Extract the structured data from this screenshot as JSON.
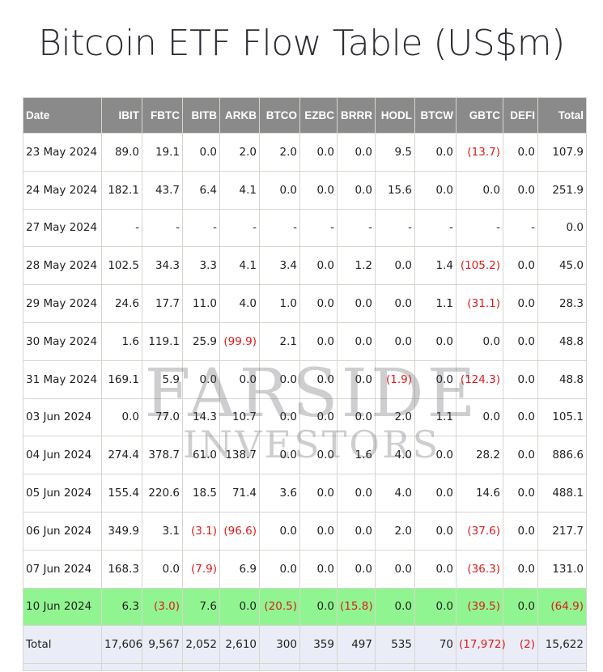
{
  "title": "Bitcoin ETF Flow Table (US$m)",
  "watermark": {
    "line1": "FARSIDE",
    "line2": "INVESTORS"
  },
  "table": {
    "columns": [
      "Date",
      "IBIT",
      "FBTC",
      "BITB",
      "ARKB",
      "BTCO",
      "EZBC",
      "BRRR",
      "HODL",
      "BTCW",
      "GBTC",
      "DEFI",
      "Total"
    ],
    "rows": [
      {
        "cells": [
          "23 May 2024",
          "89.0",
          "19.1",
          "0.0",
          "2.0",
          "2.0",
          "0.0",
          "0.0",
          "9.5",
          "0.0",
          "(13.7)",
          "0.0",
          "107.9"
        ]
      },
      {
        "cells": [
          "24 May 2024",
          "182.1",
          "43.7",
          "6.4",
          "4.1",
          "0.0",
          "0.0",
          "0.0",
          "15.6",
          "0.0",
          "0.0",
          "0.0",
          "251.9"
        ]
      },
      {
        "cells": [
          "27 May 2024",
          "-",
          "-",
          "-",
          "-",
          "-",
          "-",
          "-",
          "-",
          "-",
          "-",
          "-",
          "0.0"
        ]
      },
      {
        "cells": [
          "28 May 2024",
          "102.5",
          "34.3",
          "3.3",
          "4.1",
          "3.4",
          "0.0",
          "1.2",
          "0.0",
          "1.4",
          "(105.2)",
          "0.0",
          "45.0"
        ]
      },
      {
        "cells": [
          "29 May 2024",
          "24.6",
          "17.7",
          "11.0",
          "4.0",
          "1.0",
          "0.0",
          "0.0",
          "0.0",
          "1.1",
          "(31.1)",
          "0.0",
          "28.3"
        ]
      },
      {
        "cells": [
          "30 May 2024",
          "1.6",
          "119.1",
          "25.9",
          "(99.9)",
          "2.1",
          "0.0",
          "0.0",
          "0.0",
          "0.0",
          "0.0",
          "0.0",
          "48.8"
        ]
      },
      {
        "cells": [
          "31 May 2024",
          "169.1",
          "5.9",
          "0.0",
          "0.0",
          "0.0",
          "0.0",
          "0.0",
          "(1.9)",
          "0.0",
          "(124.3)",
          "0.0",
          "48.8"
        ]
      },
      {
        "cells": [
          "03 Jun 2024",
          "0.0",
          "77.0",
          "14.3",
          "10.7",
          "0.0",
          "0.0",
          "0.0",
          "2.0",
          "1.1",
          "0.0",
          "0.0",
          "105.1"
        ]
      },
      {
        "cells": [
          "04 Jun 2024",
          "274.4",
          "378.7",
          "61.0",
          "138.7",
          "0.0",
          "0.0",
          "1.6",
          "4.0",
          "0.0",
          "28.2",
          "0.0",
          "886.6"
        ]
      },
      {
        "cells": [
          "05 Jun 2024",
          "155.4",
          "220.6",
          "18.5",
          "71.4",
          "3.6",
          "0.0",
          "0.0",
          "4.0",
          "0.0",
          "14.6",
          "0.0",
          "488.1"
        ]
      },
      {
        "cells": [
          "06 Jun 2024",
          "349.9",
          "3.1",
          "(3.1)",
          "(96.6)",
          "0.0",
          "0.0",
          "0.0",
          "2.0",
          "0.0",
          "(37.6)",
          "0.0",
          "217.7"
        ]
      },
      {
        "cells": [
          "07 Jun 2024",
          "168.3",
          "0.0",
          "(7.9)",
          "6.9",
          "0.0",
          "0.0",
          "0.0",
          "0.0",
          "0.0",
          "(36.3)",
          "0.0",
          "131.0"
        ]
      },
      {
        "cells": [
          "10 Jun 2024",
          "6.3",
          "(3.0)",
          "7.6",
          "0.0",
          "(20.5)",
          "0.0",
          "(15.8)",
          "0.0",
          "0.0",
          "(39.5)",
          "0.0",
          "(64.9)"
        ],
        "highlight": true
      }
    ],
    "total_row": [
      "Total",
      "17,606",
      "9,567",
      "2,052",
      "2,610",
      "300",
      "359",
      "497",
      "535",
      "70",
      "(17,972)",
      "(2)",
      "15,622"
    ],
    "colors": {
      "header_bg": "#8a8a8a",
      "highlight_bg": "#90f590",
      "total_bg": "#eaedf7",
      "negative": "#e0191b"
    }
  }
}
